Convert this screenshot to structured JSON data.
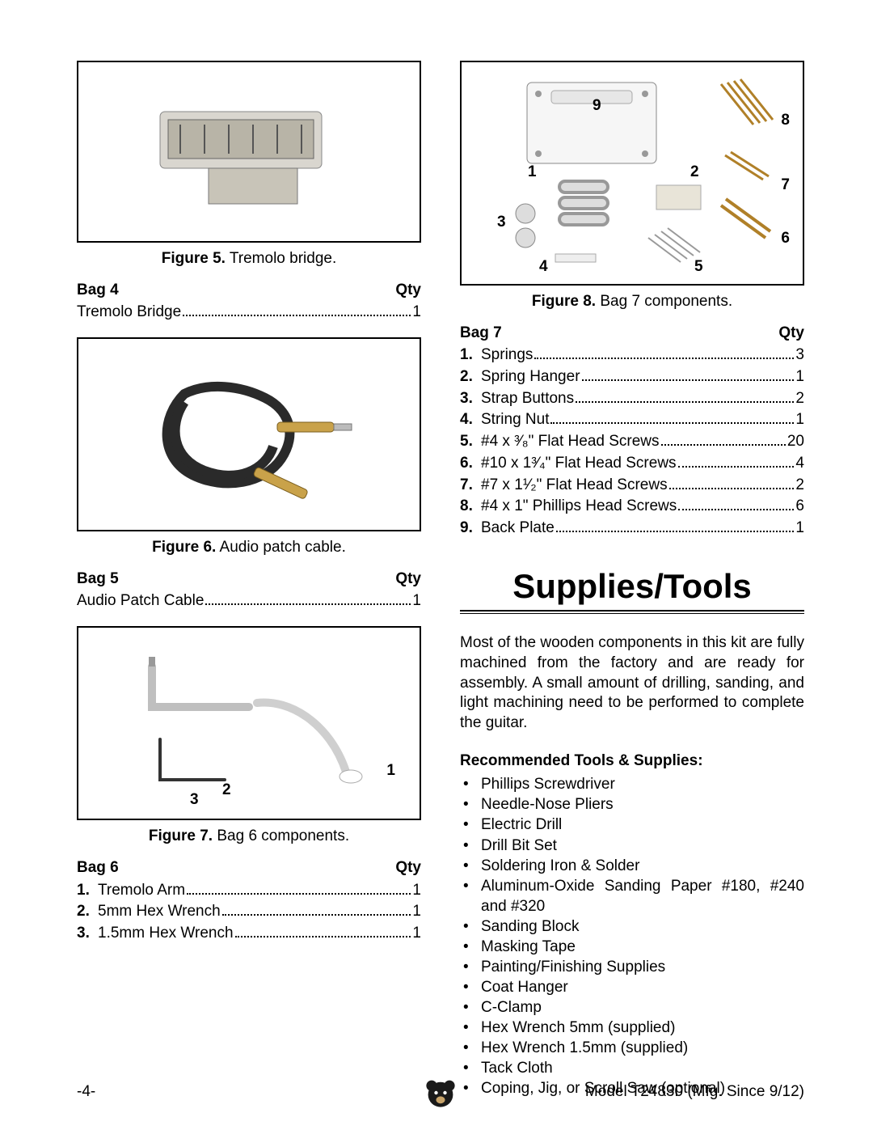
{
  "left": {
    "fig5": {
      "label": "Figure 5.",
      "caption": "Tremolo bridge."
    },
    "bag4": {
      "title": "Bag 4",
      "qty_label": "Qty",
      "items": [
        {
          "label": "Tremolo Bridge",
          "qty": "1"
        }
      ]
    },
    "fig6": {
      "label": "Figure 6.",
      "caption": "Audio patch cable."
    },
    "bag5": {
      "title": "Bag 5",
      "qty_label": "Qty",
      "items": [
        {
          "label": "Audio Patch Cable",
          "qty": "1"
        }
      ]
    },
    "fig7": {
      "label": "Figure 7.",
      "caption": "Bag 6 components.",
      "callouts": {
        "1": "1",
        "2": "2",
        "3": "3"
      }
    },
    "bag6": {
      "title": "Bag 6",
      "qty_label": "Qty",
      "items": [
        {
          "num": "1.",
          "label": "Tremolo Arm",
          "qty": "1"
        },
        {
          "num": "2.",
          "label": "5mm Hex Wrench",
          "qty": "1"
        },
        {
          "num": "3.",
          "label": "1.5mm Hex Wrench",
          "qty": "1"
        }
      ]
    }
  },
  "right": {
    "fig8": {
      "label": "Figure 8.",
      "caption": "Bag 7 components.",
      "callouts": {
        "1": "1",
        "2": "2",
        "3": "3",
        "4": "4",
        "5": "5",
        "6": "6",
        "7": "7",
        "8": "8",
        "9": "9"
      }
    },
    "bag7": {
      "title": "Bag 7",
      "qty_label": "Qty",
      "items": [
        {
          "num": "1.",
          "label": "Springs",
          "qty": "3"
        },
        {
          "num": "2.",
          "label": "Spring Hanger",
          "qty": "1"
        },
        {
          "num": "3.",
          "label": "Strap Buttons",
          "qty": "2"
        },
        {
          "num": "4.",
          "label": "String Nut",
          "qty": "1"
        },
        {
          "num": "5.",
          "label": "#4 x ³⁄₈\" Flat Head Screws",
          "qty": "20"
        },
        {
          "num": "6.",
          "label": "#10 x 1³⁄₄\" Flat Head Screws",
          "qty": "4"
        },
        {
          "num": "7.",
          "label": "#7 x 1¹⁄₂\" Flat Head Screws",
          "qty": "2"
        },
        {
          "num": "8.",
          "label": "#4 x 1\" Phillips Head Screws",
          "qty": "6"
        },
        {
          "num": "9.",
          "label": "Back Plate",
          "qty": "1"
        }
      ]
    },
    "section_title": "Supplies/Tools",
    "paragraph": "Most of the wooden components in this kit are fully machined from the factory and are ready for assembly. A small amount of drilling, sanding, and light machining need to be performed to complete the guitar.",
    "tools_head": "Recommended Tools & Supplies:",
    "tools": [
      "Phillips Screwdriver",
      "Needle-Nose Pliers",
      "Electric Drill",
      "Drill Bit Set",
      "Soldering Iron & Solder",
      "Aluminum-Oxide Sanding Paper #180, #240 and #320",
      "Sanding Block",
      "Masking Tape",
      "Painting/Finishing Supplies",
      "Coat Hanger",
      "C-Clamp",
      "Hex Wrench 5mm (supplied)",
      "Hex Wrench 1.5mm (supplied)",
      "Tack Cloth",
      "Coping, Jig, or Scroll Saw (optional)"
    ]
  },
  "footer": {
    "page": "-4-",
    "model": "Model T24830 (Mfg. Since 9/12)"
  },
  "colors": {
    "text": "#000000",
    "border": "#000000",
    "background": "#ffffff"
  }
}
